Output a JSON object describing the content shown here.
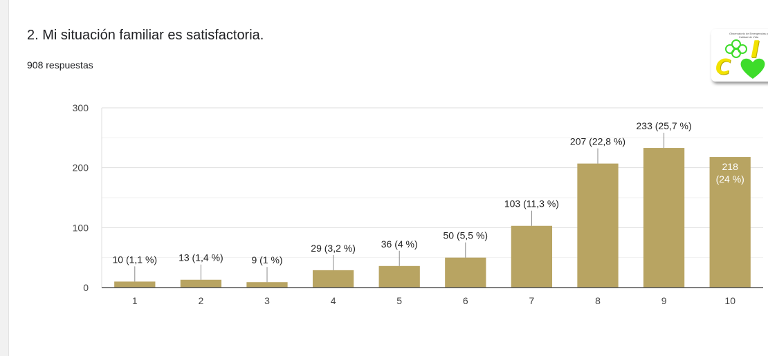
{
  "question": {
    "title": "2. Mi situación familiar es satisfactoria.",
    "responses_label": "908 respuestas"
  },
  "logo": {
    "caption": "Observatorio de Emergencias y Calidad de Vida",
    "letters": [
      "C",
      "I"
    ],
    "icons": [
      "clover-icon",
      "heart-icon"
    ],
    "colors": {
      "letters": "#f2e200",
      "icons": "#3ddc2a"
    }
  },
  "chart_data": {
    "type": "bar",
    "title": "",
    "xlabel": "",
    "ylabel": "",
    "categories": [
      "1",
      "2",
      "3",
      "4",
      "5",
      "6",
      "7",
      "8",
      "9",
      "10"
    ],
    "values": [
      10,
      13,
      9,
      29,
      36,
      50,
      103,
      207,
      233,
      218
    ],
    "data_labels": [
      "10 (1,1 %)",
      "13 (1,4 %)",
      "9 (1 %)",
      "29 (3,2 %)",
      "36 (4 %)",
      "50 (5,5 %)",
      "103 (11,3 %)",
      "207 (22,8 %)",
      "233 (25,7 %)",
      "218 (24 %)"
    ],
    "ylim": [
      0,
      300
    ],
    "yticks": [
      0,
      100,
      200,
      300
    ],
    "grid": true,
    "legend": "none",
    "colors": {
      "bar": "#b8a462",
      "grid": "#e6e6e6",
      "axis": "#333333"
    }
  }
}
